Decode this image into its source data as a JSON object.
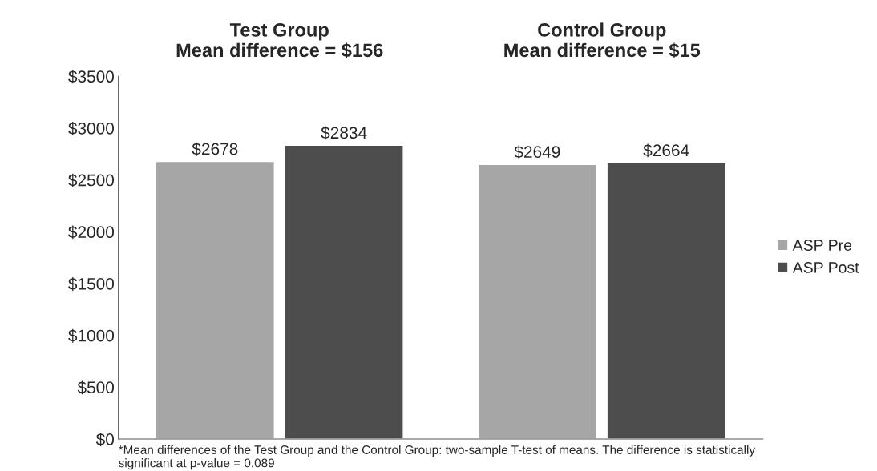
{
  "chart_data": {
    "type": "bar",
    "categories": [
      "Test Group\nMean difference = $156",
      "Control Group\nMean difference = $15"
    ],
    "series": [
      {
        "name": "ASP Pre",
        "color": "#a6a6a6",
        "values": [
          2678,
          2649
        ]
      },
      {
        "name": "ASP Post",
        "color": "#4d4d4d",
        "values": [
          2834,
          2664
        ]
      }
    ],
    "ylim": [
      0,
      3500
    ],
    "yticks": [
      {
        "value": 0,
        "label": "$0"
      },
      {
        "value": 500,
        "label": "$500"
      },
      {
        "value": 1000,
        "label": "$1000"
      },
      {
        "value": 1500,
        "label": "$1500"
      },
      {
        "value": 2000,
        "label": "$2000"
      },
      {
        "value": 2500,
        "label": "$2500"
      },
      {
        "value": 3000,
        "label": "$3000"
      },
      {
        "value": 3500,
        "label": "$3500"
      }
    ],
    "value_labels": [
      [
        "$2678",
        "$2649"
      ],
      [
        "$2834",
        "$2664"
      ]
    ],
    "grid": false,
    "legend": "right",
    "annotations": [
      "*Mean differences of the Test Group and the Control Group: two-sample T-test of means. The difference is statistically significant at p-value = 0.089"
    ]
  }
}
